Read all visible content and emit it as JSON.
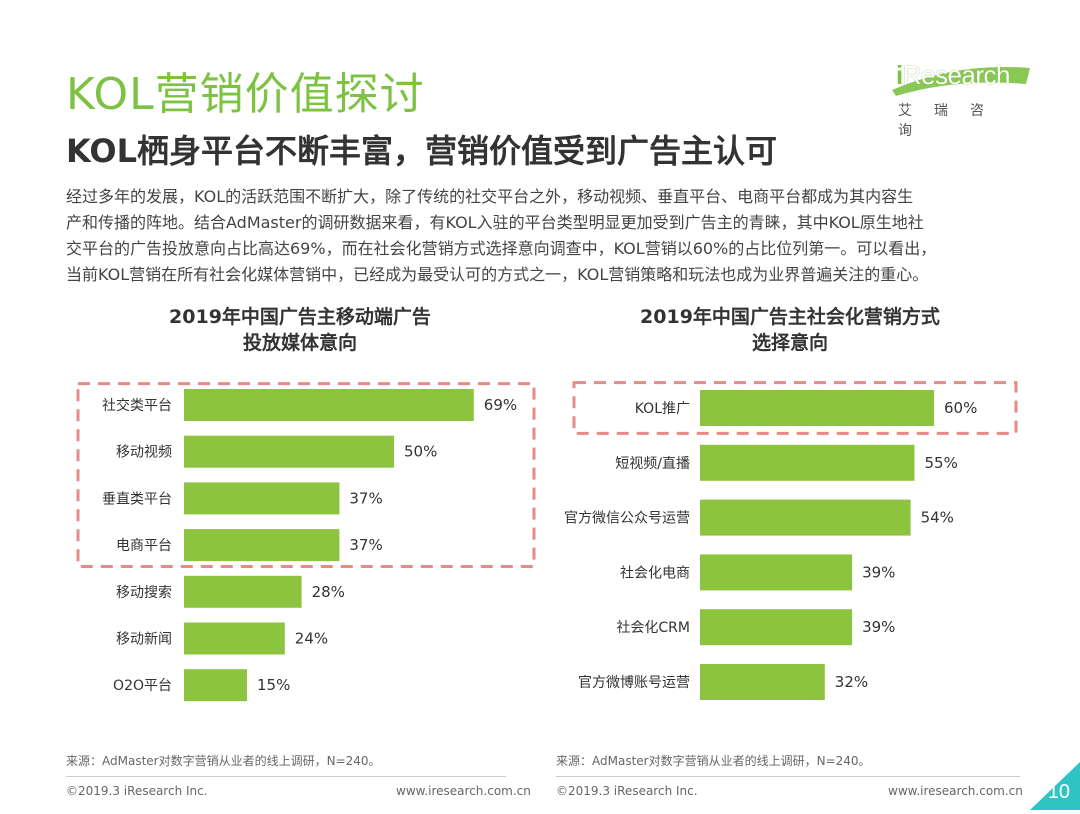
{
  "header": {
    "title": "KOL营销价值探讨",
    "subtitle": "KOL栖身平台不断丰富，营销价值受到广告主认可"
  },
  "logo": {
    "name_highlight": "i",
    "name_rest": "Research",
    "cn": "艾瑞咨询"
  },
  "paragraph": [
    "经过多年的发展，KOL的活跃范围不断扩大，除了传统的社交平台之外，移动视频、垂直平台、电商平台都成为其内容生",
    "产和传播的阵地。结合AdMaster的调研数据来看，有KOL入驻的平台类型明显更加受到广告主的青睐，其中KOL原生地社",
    "交平台的广告投放意向占比高达69%，而在社会化营销方式选择意向调查中，KOL营销以60%的占比位列第一。可以看出，",
    "当前KOL营销在所有社会化媒体营销中，已经成为最受认可的方式之一，KOL营销策略和玩法也成为业界普遍关注的重心。"
  ],
  "colors": {
    "accent": "#7dc242",
    "bar": "#8dc43f",
    "highlight_box": "#e78a8a"
  },
  "chart_data": [
    {
      "type": "bar",
      "orientation": "horizontal",
      "title_line1": "2019年中国广告主移动端广告",
      "title_line2": "投放媒体意向",
      "categories": [
        "社交类平台",
        "移动视频",
        "垂直类平台",
        "电商平台",
        "移动搜索",
        "移动新闻",
        "O2O平台"
      ],
      "values": [
        69,
        50,
        37,
        37,
        28,
        24,
        15
      ],
      "labels": [
        "69%",
        "50%",
        "37%",
        "37%",
        "28%",
        "24%",
        "15%"
      ],
      "highlighted": [
        "社交类平台",
        "移动视频",
        "垂直类平台",
        "电商平台"
      ],
      "xlim": [
        0,
        100
      ],
      "grid": false,
      "source": "来源：AdMaster对数字营销从业者的线上调研，N=240。"
    },
    {
      "type": "bar",
      "orientation": "horizontal",
      "title_line1": "2019年中国广告主社会化营销方式",
      "title_line2": "选择意向",
      "categories": [
        "KOL推广",
        "短视频/直播",
        "官方微信公众号运营",
        "社会化电商",
        "社会化CRM",
        "官方微博账号运营"
      ],
      "values": [
        60,
        55,
        54,
        39,
        39,
        32
      ],
      "labels": [
        "60%",
        "55%",
        "54%",
        "39%",
        "39%",
        "32%"
      ],
      "highlighted": [
        "KOL推广"
      ],
      "xlim": [
        0,
        100
      ],
      "grid": false,
      "source": "来源：AdMaster对数字营销从业者的线上调研，N=240。"
    }
  ],
  "footer": {
    "left_copyright": "©2019.3 iResearch Inc.",
    "left_url": "www.iresearch.com.cn",
    "right_copyright": "©2019.3 iResearch Inc.",
    "right_url": "www.iresearch.com.cn",
    "page_number": "10"
  }
}
